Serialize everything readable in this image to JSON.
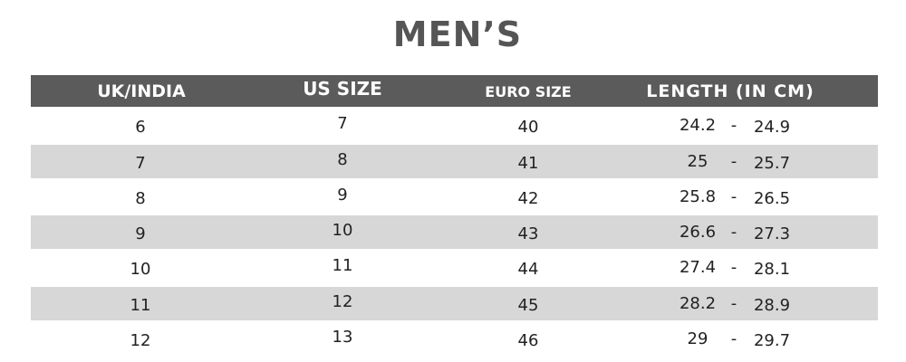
{
  "title": "MEN’S",
  "headers": [
    "UK/INDIA",
    "US SIZE",
    "EURO SIZE",
    "LENGTH (IN CM)"
  ],
  "rows": [
    {
      "uk": "6",
      "us": "7",
      "euro": "40",
      "len_min": "24.2",
      "sep": "-",
      "len_max": "24.9"
    },
    {
      "uk": "7",
      "us": "8",
      "euro": "41",
      "len_min": "25",
      "sep": "-",
      "len_max": "25.7"
    },
    {
      "uk": "8",
      "us": "9",
      "euro": "42",
      "len_min": "25.8",
      "sep": "-",
      "len_max": "26.5"
    },
    {
      "uk": "9",
      "us": "10",
      "euro": "43",
      "len_min": "26.6",
      "sep": "-",
      "len_max": "27.3"
    },
    {
      "uk": "10",
      "us": "11",
      "euro": "44",
      "len_min": "27.4",
      "sep": "-",
      "len_max": "28.1"
    },
    {
      "uk": "11",
      "us": "12",
      "euro": "45",
      "len_min": "28.2",
      "sep": "-",
      "len_max": "28.9"
    },
    {
      "uk": "12",
      "us": "13",
      "euro": "46",
      "len_min": "29",
      "sep": "-",
      "len_max": "29.7"
    }
  ],
  "colors": {
    "header_bg": "#5b5b5b",
    "stripe": "#d7d7d7",
    "title": "#555555"
  }
}
